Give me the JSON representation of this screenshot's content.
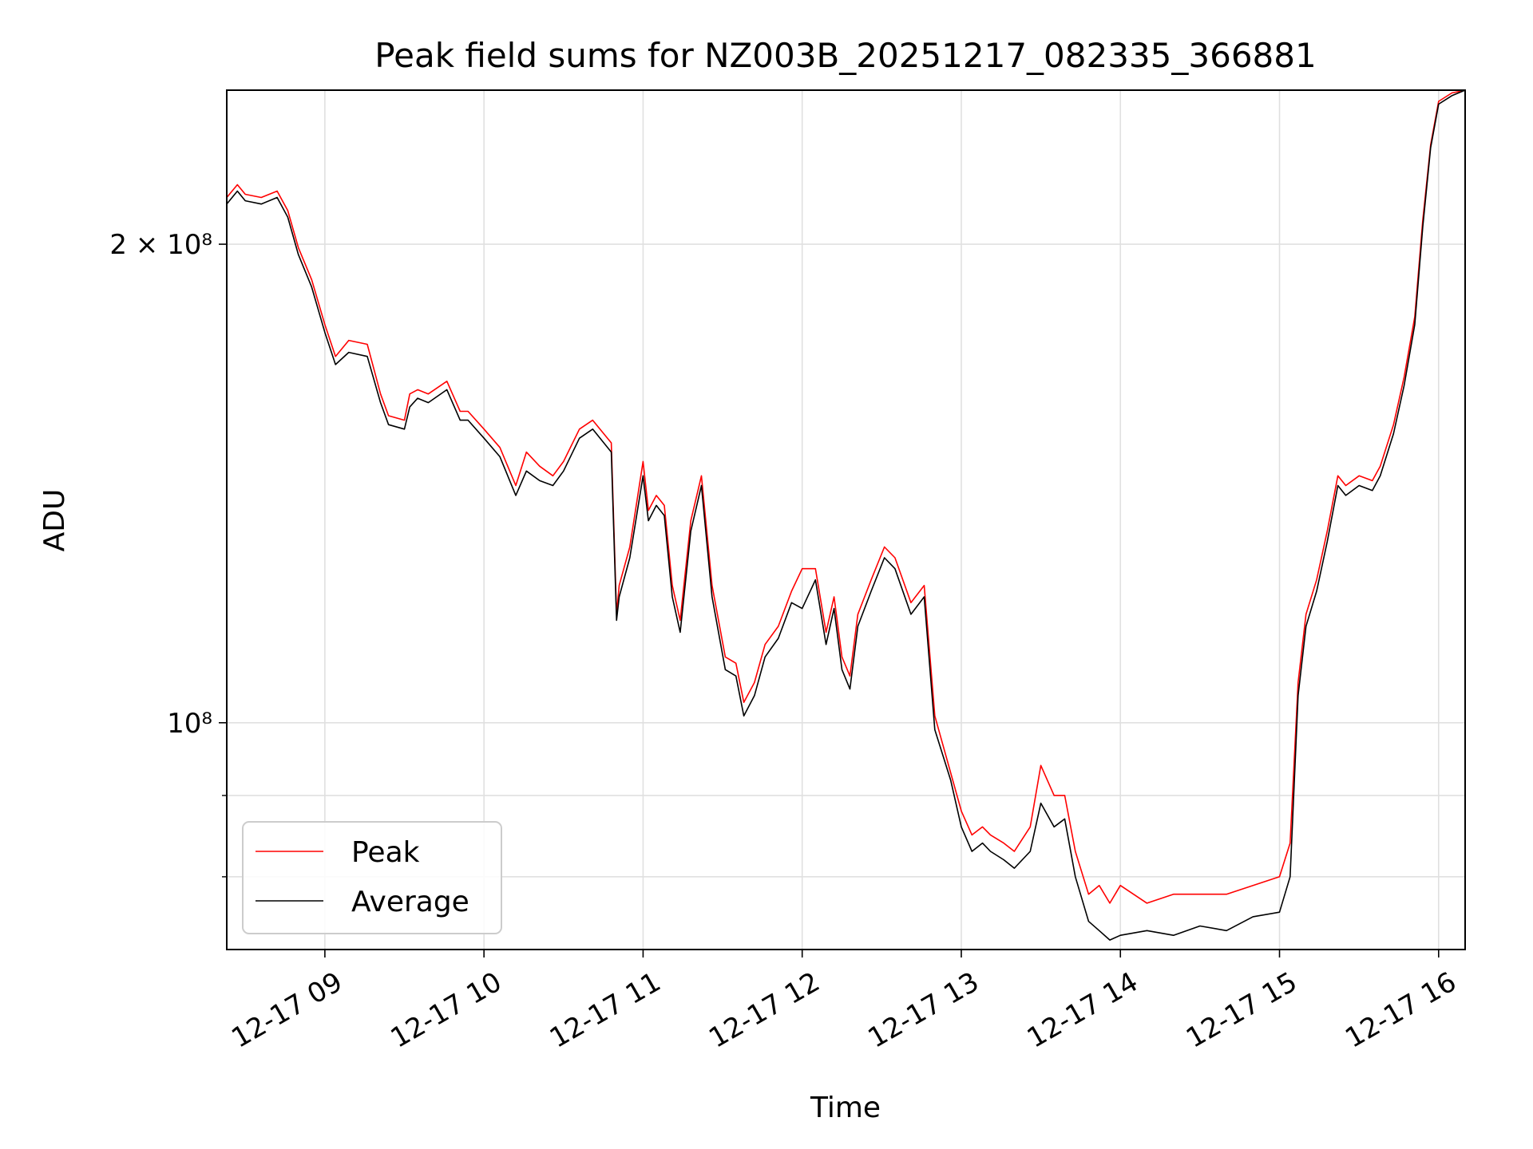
{
  "chart_data": {
    "type": "line",
    "title": "Peak field sums for NZ003B_20251217_082335_366881",
    "xlabel": "Time",
    "ylabel": "ADU",
    "y_scale": "log",
    "xlim": [
      "2025-12-17 08:23",
      "2025-12-17 16:10"
    ],
    "ylim": [
      72000000,
      250000000
    ],
    "x_ticks": [
      "12-17 09",
      "12-17 10",
      "12-17 11",
      "12-17 12",
      "12-17 13",
      "12-17 14",
      "12-17 15",
      "12-17 16"
    ],
    "y_tick_labels": [
      {
        "value": 200000000,
        "label": "2 × 10⁸"
      },
      {
        "value": 100000000,
        "label": "10⁸"
      }
    ],
    "y_minor_ticks": [
      90000000,
      80000000
    ],
    "grid": true,
    "legend": {
      "position": "lower-left",
      "entries": [
        "Peak",
        "Average"
      ]
    },
    "series": [
      {
        "name": "Average",
        "color": "#000000",
        "x": [
          "2025-12-17 08:23",
          "2025-12-17 08:27",
          "2025-12-17 08:30",
          "2025-12-17 08:36",
          "2025-12-17 08:42",
          "2025-12-17 08:46",
          "2025-12-17 08:50",
          "2025-12-17 08:55",
          "2025-12-17 09:00",
          "2025-12-17 09:04",
          "2025-12-17 09:09",
          "2025-12-17 09:16",
          "2025-12-17 09:21",
          "2025-12-17 09:24",
          "2025-12-17 09:30",
          "2025-12-17 09:32",
          "2025-12-17 09:35",
          "2025-12-17 09:39",
          "2025-12-17 09:46",
          "2025-12-17 09:51",
          "2025-12-17 09:54",
          "2025-12-17 10:00",
          "2025-12-17 10:06",
          "2025-12-17 10:12",
          "2025-12-17 10:16",
          "2025-12-17 10:21",
          "2025-12-17 10:26",
          "2025-12-17 10:30",
          "2025-12-17 10:36",
          "2025-12-17 10:41",
          "2025-12-17 10:48",
          "2025-12-17 10:50",
          "2025-12-17 10:51",
          "2025-12-17 10:55",
          "2025-12-17 11:00",
          "2025-12-17 11:02",
          "2025-12-17 11:05",
          "2025-12-17 11:08",
          "2025-12-17 11:11",
          "2025-12-17 11:14",
          "2025-12-17 11:18",
          "2025-12-17 11:22",
          "2025-12-17 11:26",
          "2025-12-17 11:31",
          "2025-12-17 11:35",
          "2025-12-17 11:38",
          "2025-12-17 11:42",
          "2025-12-17 11:46",
          "2025-12-17 11:51",
          "2025-12-17 11:56",
          "2025-12-17 12:00",
          "2025-12-17 12:05",
          "2025-12-17 12:09",
          "2025-12-17 12:12",
          "2025-12-17 12:15",
          "2025-12-17 12:18",
          "2025-12-17 12:21",
          "2025-12-17 12:26",
          "2025-12-17 12:31",
          "2025-12-17 12:35",
          "2025-12-17 12:41",
          "2025-12-17 12:46",
          "2025-12-17 12:50",
          "2025-12-17 12:56",
          "2025-12-17 13:00",
          "2025-12-17 13:04",
          "2025-12-17 13:08",
          "2025-12-17 13:11",
          "2025-12-17 13:16",
          "2025-12-17 13:20",
          "2025-12-17 13:26",
          "2025-12-17 13:30",
          "2025-12-17 13:35",
          "2025-12-17 13:39",
          "2025-12-17 13:43",
          "2025-12-17 13:48",
          "2025-12-17 13:52",
          "2025-12-17 13:56",
          "2025-12-17 14:00",
          "2025-12-17 14:10",
          "2025-12-17 14:20",
          "2025-12-17 14:30",
          "2025-12-17 14:40",
          "2025-12-17 14:50",
          "2025-12-17 15:00",
          "2025-12-17 15:04",
          "2025-12-17 15:07",
          "2025-12-17 15:10",
          "2025-12-17 15:14",
          "2025-12-17 15:18",
          "2025-12-17 15:22",
          "2025-12-17 15:25",
          "2025-12-17 15:30",
          "2025-12-17 15:35",
          "2025-12-17 15:38",
          "2025-12-17 15:43",
          "2025-12-17 15:47",
          "2025-12-17 15:51",
          "2025-12-17 15:54",
          "2025-12-17 15:57",
          "2025-12-17 16:00",
          "2025-12-17 16:05",
          "2025-12-17 16:10"
        ],
        "y": [
          212000000,
          216000000,
          213000000,
          212000000,
          214000000,
          208000000,
          197000000,
          188000000,
          176000000,
          168000000,
          171000000,
          170000000,
          159000000,
          154000000,
          153000000,
          158000000,
          160000000,
          159000000,
          162000000,
          155000000,
          155000000,
          151000000,
          147000000,
          139000000,
          144000000,
          142000000,
          141000000,
          144000000,
          151000000,
          153000000,
          148000000,
          116000000,
          120000000,
          127000000,
          143000000,
          134000000,
          137000000,
          135000000,
          120000000,
          114000000,
          132000000,
          141000000,
          120000000,
          108000000,
          107000000,
          101000000,
          104000000,
          110000000,
          113000000,
          119000000,
          118000000,
          123000000,
          112000000,
          118000000,
          108000000,
          105000000,
          115000000,
          121000000,
          127000000,
          125000000,
          117000000,
          120000000,
          99000000,
          92000000,
          86000000,
          83000000,
          84000000,
          83000000,
          82000000,
          81000000,
          83000000,
          89000000,
          86000000,
          87000000,
          80000000,
          75000000,
          74000000,
          73000000,
          73500000,
          74000000,
          73500000,
          74500000,
          74000000,
          75500000,
          76000000,
          80000000,
          104000000,
          115000000,
          121000000,
          130000000,
          141000000,
          139000000,
          141000000,
          140000000,
          143000000,
          152000000,
          163000000,
          178000000,
          205000000,
          230000000,
          245000000,
          248000000,
          250000000
        ]
      },
      {
        "name": "Peak",
        "color": "#ff0000",
        "x": [
          "2025-12-17 08:23",
          "2025-12-17 08:27",
          "2025-12-17 08:30",
          "2025-12-17 08:36",
          "2025-12-17 08:42",
          "2025-12-17 08:46",
          "2025-12-17 08:50",
          "2025-12-17 08:55",
          "2025-12-17 09:00",
          "2025-12-17 09:04",
          "2025-12-17 09:09",
          "2025-12-17 09:16",
          "2025-12-17 09:21",
          "2025-12-17 09:24",
          "2025-12-17 09:30",
          "2025-12-17 09:32",
          "2025-12-17 09:35",
          "2025-12-17 09:39",
          "2025-12-17 09:46",
          "2025-12-17 09:51",
          "2025-12-17 09:54",
          "2025-12-17 10:00",
          "2025-12-17 10:06",
          "2025-12-17 10:12",
          "2025-12-17 10:16",
          "2025-12-17 10:21",
          "2025-12-17 10:26",
          "2025-12-17 10:30",
          "2025-12-17 10:36",
          "2025-12-17 10:41",
          "2025-12-17 10:48",
          "2025-12-17 10:50",
          "2025-12-17 10:51",
          "2025-12-17 10:55",
          "2025-12-17 11:00",
          "2025-12-17 11:02",
          "2025-12-17 11:05",
          "2025-12-17 11:08",
          "2025-12-17 11:11",
          "2025-12-17 11:14",
          "2025-12-17 11:18",
          "2025-12-17 11:22",
          "2025-12-17 11:26",
          "2025-12-17 11:31",
          "2025-12-17 11:35",
          "2025-12-17 11:38",
          "2025-12-17 11:42",
          "2025-12-17 11:46",
          "2025-12-17 11:51",
          "2025-12-17 11:56",
          "2025-12-17 12:00",
          "2025-12-17 12:05",
          "2025-12-17 12:09",
          "2025-12-17 12:12",
          "2025-12-17 12:15",
          "2025-12-17 12:18",
          "2025-12-17 12:21",
          "2025-12-17 12:26",
          "2025-12-17 12:31",
          "2025-12-17 12:35",
          "2025-12-17 12:41",
          "2025-12-17 12:46",
          "2025-12-17 12:50",
          "2025-12-17 12:56",
          "2025-12-17 13:00",
          "2025-12-17 13:04",
          "2025-12-17 13:08",
          "2025-12-17 13:11",
          "2025-12-17 13:16",
          "2025-12-17 13:20",
          "2025-12-17 13:26",
          "2025-12-17 13:30",
          "2025-12-17 13:35",
          "2025-12-17 13:39",
          "2025-12-17 13:43",
          "2025-12-17 13:48",
          "2025-12-17 13:52",
          "2025-12-17 13:56",
          "2025-12-17 14:00",
          "2025-12-17 14:10",
          "2025-12-17 14:20",
          "2025-12-17 14:30",
          "2025-12-17 14:40",
          "2025-12-17 14:50",
          "2025-12-17 15:00",
          "2025-12-17 15:04",
          "2025-12-17 15:07",
          "2025-12-17 15:10",
          "2025-12-17 15:14",
          "2025-12-17 15:18",
          "2025-12-17 15:22",
          "2025-12-17 15:25",
          "2025-12-17 15:30",
          "2025-12-17 15:35",
          "2025-12-17 15:38",
          "2025-12-17 15:43",
          "2025-12-17 15:47",
          "2025-12-17 15:51",
          "2025-12-17 15:54",
          "2025-12-17 15:57",
          "2025-12-17 16:00",
          "2025-12-17 16:05",
          "2025-12-17 16:10"
        ],
        "y": [
          214000000,
          218000000,
          215000000,
          214000000,
          216000000,
          210000000,
          199000000,
          190000000,
          178000000,
          170000000,
          174000000,
          173000000,
          161000000,
          156000000,
          155000000,
          161000000,
          162000000,
          161000000,
          164000000,
          157000000,
          157000000,
          153000000,
          149000000,
          141000000,
          148000000,
          145000000,
          143000000,
          146000000,
          153000000,
          155000000,
          150000000,
          117000000,
          122000000,
          129000000,
          146000000,
          136000000,
          139000000,
          137000000,
          122000000,
          116000000,
          134000000,
          143000000,
          122000000,
          110000000,
          109000000,
          103000000,
          106000000,
          112000000,
          115000000,
          121000000,
          125000000,
          125000000,
          114000000,
          120000000,
          110000000,
          107000000,
          117000000,
          123000000,
          129000000,
          127000000,
          119000000,
          122000000,
          101000000,
          93000000,
          88000000,
          85000000,
          86000000,
          85000000,
          84000000,
          83000000,
          86000000,
          94000000,
          90000000,
          90000000,
          83000000,
          78000000,
          79000000,
          77000000,
          79000000,
          77000000,
          78000000,
          78000000,
          78000000,
          79000000,
          80000000,
          84000000,
          106000000,
          117000000,
          123000000,
          132000000,
          143000000,
          141000000,
          143000000,
          142000000,
          145000000,
          154000000,
          165000000,
          180000000,
          207000000,
          231000000,
          246000000,
          249000000,
          250000000
        ]
      }
    ]
  }
}
